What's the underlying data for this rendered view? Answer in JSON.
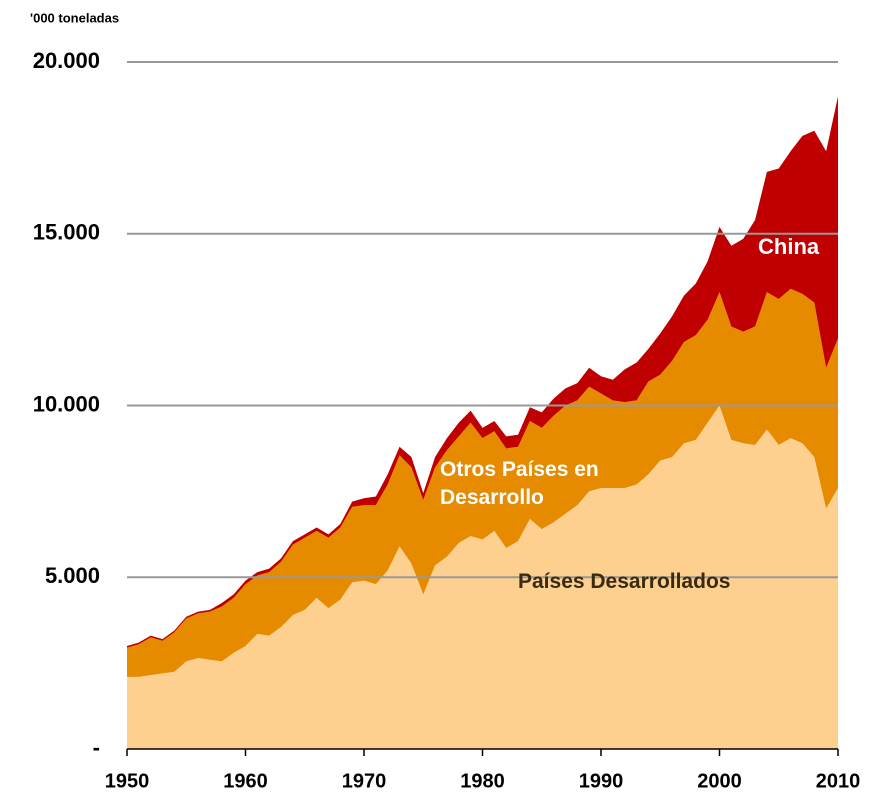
{
  "chart_data": {
    "type": "stacked_area",
    "y_axis_label": "'000 toneladas",
    "x": [
      1950,
      1951,
      1952,
      1953,
      1954,
      1955,
      1956,
      1957,
      1958,
      1959,
      1960,
      1961,
      1962,
      1963,
      1964,
      1965,
      1966,
      1967,
      1968,
      1969,
      1970,
      1971,
      1972,
      1973,
      1974,
      1975,
      1976,
      1977,
      1978,
      1979,
      1980,
      1981,
      1982,
      1983,
      1984,
      1985,
      1986,
      1987,
      1988,
      1989,
      1990,
      1991,
      1992,
      1993,
      1994,
      1995,
      1996,
      1997,
      1998,
      1999,
      2000,
      2001,
      2002,
      2003,
      2004,
      2005,
      2006,
      2007,
      2008,
      2009,
      2010
    ],
    "series": [
      {
        "name": "Países Desarrollados",
        "color": "#fdd08f",
        "values": [
          2100,
          2100,
          2150,
          2200,
          2250,
          2550,
          2650,
          2600,
          2550,
          2800,
          3000,
          3350,
          3300,
          3550,
          3900,
          4050,
          4400,
          4100,
          4350,
          4850,
          4900,
          4800,
          5200,
          5900,
          5400,
          4500,
          5350,
          5600,
          6000,
          6200,
          6100,
          6350,
          5850,
          6050,
          6700,
          6400,
          6600,
          6850,
          7100,
          7500,
          7600,
          7600,
          7600,
          7700,
          8000,
          8400,
          8500,
          8900,
          9000,
          9500,
          10000,
          9000,
          8900,
          8850,
          9300,
          8850,
          9050,
          8900,
          8500,
          7000,
          7600
        ]
      },
      {
        "name": "Otros Países en Desarrollo",
        "color": "#e68a00",
        "values": [
          850,
          950,
          1100,
          950,
          1150,
          1250,
          1300,
          1400,
          1600,
          1600,
          1800,
          1700,
          1850,
          1900,
          2050,
          2100,
          1950,
          2050,
          2100,
          2200,
          2200,
          2300,
          2500,
          2650,
          2800,
          2750,
          2850,
          3100,
          3100,
          3300,
          2950,
          2900,
          2900,
          2750,
          2850,
          2950,
          3100,
          3150,
          3050,
          3050,
          2750,
          2550,
          2500,
          2450,
          2700,
          2500,
          2800,
          2950,
          3050,
          3000,
          3300,
          3300,
          3250,
          3450,
          4000,
          4250,
          4350,
          4350,
          4500,
          4100,
          4350
        ]
      },
      {
        "name": "China",
        "color": "#c00000",
        "values": [
          50,
          50,
          50,
          50,
          50,
          50,
          50,
          50,
          100,
          100,
          100,
          100,
          100,
          100,
          100,
          100,
          100,
          100,
          100,
          150,
          200,
          250,
          300,
          250,
          300,
          200,
          300,
          350,
          400,
          350,
          300,
          300,
          350,
          350,
          400,
          450,
          500,
          500,
          500,
          550,
          500,
          600,
          950,
          1100,
          950,
          1200,
          1300,
          1350,
          1500,
          1700,
          1900,
          2350,
          2700,
          3100,
          3500,
          3800,
          4000,
          4600,
          5000,
          6300,
          7050
        ]
      }
    ],
    "xlim": [
      1950,
      2010
    ],
    "xticks": [
      1950,
      1960,
      1970,
      1980,
      1990,
      2000,
      2010
    ],
    "ylim": [
      0,
      20000
    ],
    "yticks": [
      {
        "value": 0,
        "label": "-"
      },
      {
        "value": 5000,
        "label": "5.000"
      },
      {
        "value": 10000,
        "label": "10.000"
      },
      {
        "value": 15000,
        "label": "15.000"
      },
      {
        "value": 20000,
        "label": "20.000"
      }
    ],
    "grid": true
  }
}
